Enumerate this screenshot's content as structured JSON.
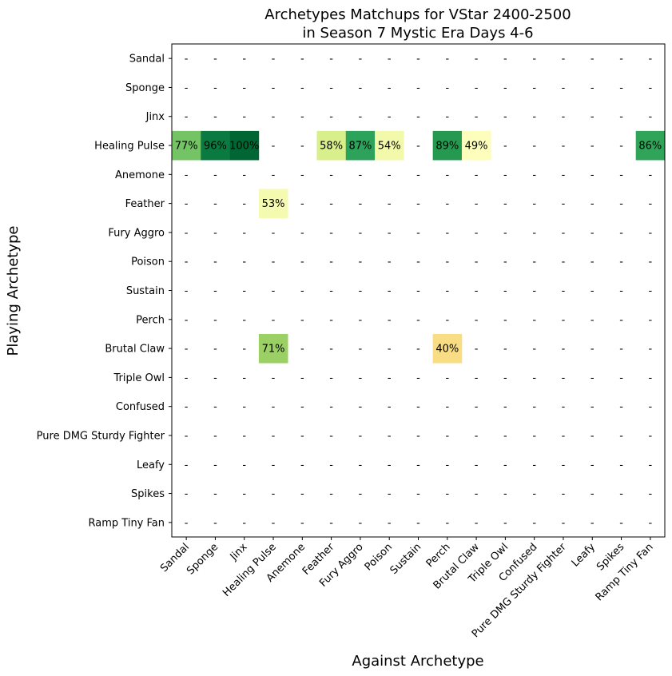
{
  "chart_data": {
    "type": "heatmap",
    "title_line1": "Archetypes Matchups for VStar 2400-2500",
    "title_line2": "in Season 7 Mystic Era Days 4-6",
    "xlabel": "Against Archetype",
    "ylabel": "Playing Archetype",
    "rows": [
      "Sandal",
      "Sponge",
      "Jinx",
      "Healing Pulse",
      "Anemone",
      "Feather",
      "Fury Aggro",
      "Poison",
      "Sustain",
      "Perch",
      "Brutal Claw",
      "Triple Owl",
      "Confused",
      "Pure DMG Sturdy Fighter",
      "Leafy",
      "Spikes",
      "Ramp Tiny Fan"
    ],
    "cols": [
      "Sandal",
      "Sponge",
      "Jinx",
      "Healing Pulse",
      "Anemone",
      "Feather",
      "Fury Aggro",
      "Poison",
      "Sustain",
      "Perch",
      "Brutal Claw",
      "Triple Owl",
      "Confused",
      "Pure DMG Sturdy Fighter",
      "Leafy",
      "Spikes",
      "Ramp Tiny Fan"
    ],
    "missing_label": "-",
    "value_suffix": "%",
    "colormap": "RdYlGn",
    "value_range": [
      0,
      100
    ],
    "cells": [
      {
        "row": 3,
        "col": 0,
        "value": 77,
        "color": "#74c365"
      },
      {
        "row": 3,
        "col": 1,
        "value": 96,
        "color": "#0b7a40"
      },
      {
        "row": 3,
        "col": 2,
        "value": 100,
        "color": "#006634"
      },
      {
        "row": 3,
        "col": 5,
        "value": 58,
        "color": "#d9ef8b"
      },
      {
        "row": 3,
        "col": 6,
        "value": 87,
        "color": "#2ca25a"
      },
      {
        "row": 3,
        "col": 7,
        "value": 54,
        "color": "#f2f9aa"
      },
      {
        "row": 3,
        "col": 9,
        "value": 89,
        "color": "#24994f"
      },
      {
        "row": 3,
        "col": 10,
        "value": 49,
        "color": "#fdfebc"
      },
      {
        "row": 3,
        "col": 16,
        "value": 86,
        "color": "#30a55a"
      },
      {
        "row": 5,
        "col": 3,
        "value": 53,
        "color": "#f4fab0"
      },
      {
        "row": 10,
        "col": 3,
        "value": 71,
        "color": "#9bd164"
      },
      {
        "row": 10,
        "col": 9,
        "value": 40,
        "color": "#f8dd84"
      }
    ]
  }
}
